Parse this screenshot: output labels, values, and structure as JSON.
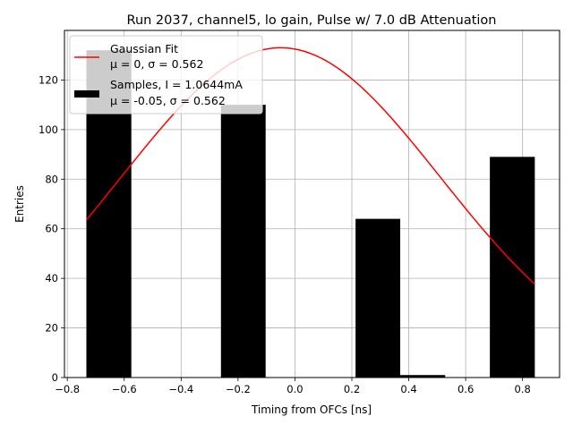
{
  "chart_data": {
    "type": "bar",
    "title": "Run 2037, channel5, lo gain, Pulse w/ 7.0 dB Attenuation",
    "xlabel": "Timing from OFCs [ns]",
    "ylabel": "Entries",
    "xlim": [
      -0.81,
      0.93
    ],
    "ylim": [
      0,
      140
    ],
    "xticks": [
      -0.8,
      -0.6,
      -0.4,
      -0.2,
      0.0,
      0.2,
      0.4,
      0.6,
      0.8
    ],
    "xtick_labels": [
      "−0.8",
      "−0.6",
      "−0.4",
      "−0.2",
      "0.0",
      "0.2",
      "0.4",
      "0.6",
      "0.8"
    ],
    "yticks": [
      0,
      20,
      40,
      60,
      80,
      100,
      120
    ],
    "ytick_labels": [
      "0",
      "20",
      "40",
      "60",
      "80",
      "100",
      "120"
    ],
    "grid": true,
    "legend_position": "upper-left",
    "histogram": {
      "name": "Samples, I = 1.0644mA",
      "stats": "μ = -0.05, σ = 0.562",
      "color": "#000000",
      "bin_edges": [
        -0.733,
        -0.575,
        -0.418,
        -0.26,
        -0.103,
        0.055,
        0.213,
        0.37,
        0.528,
        0.685,
        0.843
      ],
      "values": [
        132,
        0,
        0,
        110,
        0,
        0,
        64,
        1,
        0,
        89
      ]
    },
    "fit": {
      "name": "Gaussian Fit",
      "stats": "μ = 0, σ = 0.562",
      "color": "#ff0000",
      "x_start": -0.733,
      "x_end": 0.843,
      "amplitude": 133,
      "mean": -0.05,
      "sigma": 0.562
    }
  }
}
